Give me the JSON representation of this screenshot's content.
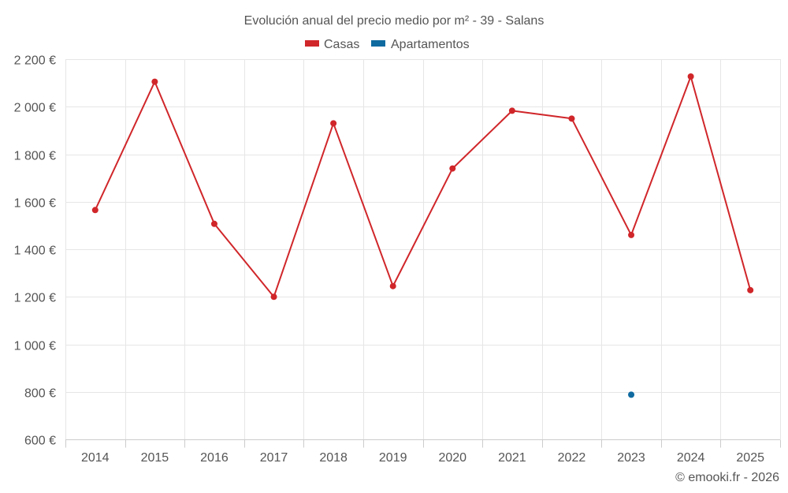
{
  "chart_data": {
    "type": "line",
    "title": "Evolución anual del precio medio por m² - 39 - Salans",
    "categories": [
      "2014",
      "2015",
      "2016",
      "2017",
      "2018",
      "2019",
      "2020",
      "2021",
      "2022",
      "2023",
      "2024",
      "2025"
    ],
    "series": [
      {
        "name": "Casas",
        "color": "#d0262a",
        "values": [
          1565,
          2105,
          1507,
          1200,
          1930,
          1245,
          1740,
          1983,
          1950,
          1460,
          2127,
          1228
        ]
      },
      {
        "name": "Apartamentos",
        "color": "#0f6aa0",
        "values": [
          null,
          null,
          null,
          null,
          null,
          null,
          null,
          null,
          null,
          788,
          null,
          null
        ]
      }
    ],
    "ylim": [
      600,
      2200
    ],
    "yticks": [
      600,
      800,
      1000,
      1200,
      1400,
      1600,
      1800,
      2000,
      2200
    ],
    "ytick_labels": [
      "600 €",
      "800 €",
      "1 000 €",
      "1 200 €",
      "1 400 €",
      "1 600 €",
      "1 800 €",
      "2 000 €",
      "2 200 €"
    ],
    "xlabel": "",
    "ylabel": "",
    "grid": true,
    "legend_position": "top-center"
  },
  "credit": "© emooki.fr - 2026"
}
